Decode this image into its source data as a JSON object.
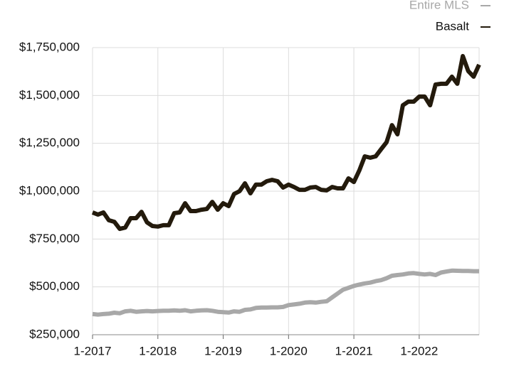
{
  "chart_data": {
    "type": "line",
    "x": [
      2017,
      2017.0833,
      2017.1667,
      2017.25,
      2017.3333,
      2017.4167,
      2017.5,
      2017.5833,
      2017.6667,
      2017.75,
      2017.8333,
      2017.9167,
      2018,
      2018.0833,
      2018.1667,
      2018.25,
      2018.3333,
      2018.4167,
      2018.5,
      2018.5833,
      2018.6667,
      2018.75,
      2018.8333,
      2018.9167,
      2019,
      2019.0833,
      2019.1667,
      2019.25,
      2019.3333,
      2019.4167,
      2019.5,
      2019.5833,
      2019.6667,
      2019.75,
      2019.8333,
      2019.9167,
      2020,
      2020.0833,
      2020.1667,
      2020.25,
      2020.3333,
      2020.4167,
      2020.5,
      2020.5833,
      2020.6667,
      2020.75,
      2020.8333,
      2020.9167,
      2021,
      2021.0833,
      2021.1667,
      2021.25,
      2021.3333,
      2021.4167,
      2021.5,
      2021.5833,
      2021.6667,
      2021.75,
      2021.8333,
      2021.9167,
      2022,
      2022.0833,
      2022.1667,
      2022.25,
      2022.3333,
      2022.4167,
      2022.5,
      2022.5833,
      2022.6667,
      2022.75,
      2022.8333,
      2022.9167
    ],
    "series": [
      {
        "name": "Entire MLS",
        "color": "#a8a8a8",
        "values": [
          358000,
          355000,
          358000,
          360000,
          365000,
          362000,
          372000,
          375000,
          370000,
          372000,
          374000,
          372000,
          374000,
          375000,
          375000,
          377000,
          375000,
          378000,
          372000,
          375000,
          377000,
          378000,
          375000,
          370000,
          368000,
          366000,
          372000,
          370000,
          380000,
          382000,
          390000,
          392000,
          392000,
          393000,
          393000,
          395000,
          405000,
          408000,
          412000,
          418000,
          420000,
          418000,
          422000,
          425000,
          445000,
          465000,
          485000,
          495000,
          505000,
          512000,
          518000,
          522000,
          530000,
          535000,
          545000,
          558000,
          562000,
          565000,
          570000,
          572000,
          568000,
          565000,
          568000,
          562000,
          575000,
          580000,
          585000,
          584000,
          583000,
          583000,
          582000,
          582000
        ]
      },
      {
        "name": "Basalt",
        "color": "#231a0c",
        "values": [
          889000,
          878000,
          889000,
          848000,
          840000,
          803000,
          810000,
          859000,
          859000,
          892000,
          837000,
          818000,
          815000,
          822000,
          822000,
          885000,
          889000,
          937000,
          896000,
          896000,
          903000,
          907000,
          944000,
          903000,
          937000,
          922000,
          985000,
          1000000,
          1041000,
          989000,
          1034000,
          1034000,
          1052000,
          1059000,
          1052000,
          1019000,
          1034000,
          1022000,
          1007000,
          1007000,
          1019000,
          1022000,
          1007000,
          1004000,
          1022000,
          1015000,
          1015000,
          1067000,
          1048000,
          1108000,
          1182000,
          1175000,
          1182000,
          1219000,
          1256000,
          1345000,
          1297000,
          1449000,
          1468000,
          1468000,
          1494000,
          1494000,
          1449000,
          1557000,
          1561000,
          1561000,
          1598000,
          1561000,
          1706000,
          1628000,
          1598000,
          1661000
        ]
      }
    ],
    "xlim": [
      2017,
      2022.9167
    ],
    "xticks": [
      {
        "value": 2017,
        "label": "1-2017"
      },
      {
        "value": 2018,
        "label": "1-2018"
      },
      {
        "value": 2019,
        "label": "1-2019"
      },
      {
        "value": 2020,
        "label": "1-2020"
      },
      {
        "value": 2021,
        "label": "1-2021"
      },
      {
        "value": 2022,
        "label": "1-2022"
      }
    ],
    "ylim": [
      250000,
      1750000
    ],
    "yticks": [
      {
        "value": 250000,
        "label": "$250,000"
      },
      {
        "value": 500000,
        "label": "$500,000"
      },
      {
        "value": 750000,
        "label": "$750,000"
      },
      {
        "value": 1000000,
        "label": "$1,000,000"
      },
      {
        "value": 1250000,
        "label": "$1,250,000"
      },
      {
        "value": 1500000,
        "label": "$1,500,000"
      },
      {
        "value": 1750000,
        "label": "$1,750,000"
      }
    ],
    "grid": true,
    "legend": "top-right"
  }
}
